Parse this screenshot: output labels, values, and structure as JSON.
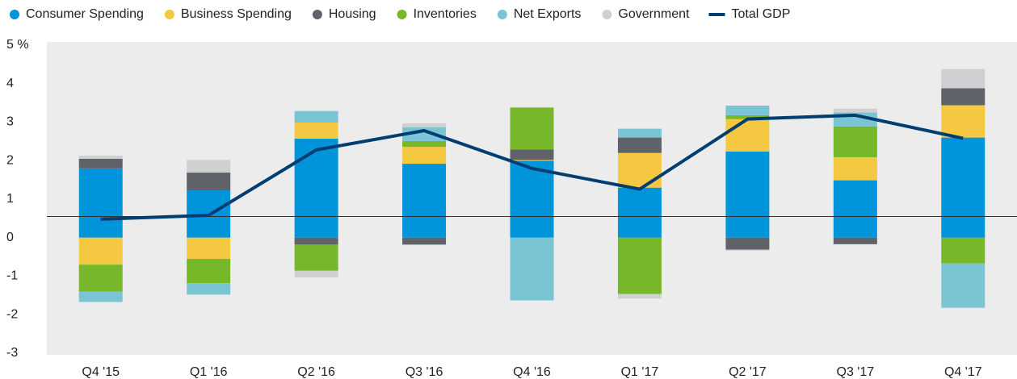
{
  "chart_data": {
    "type": "bar",
    "stacked": true,
    "categories": [
      "Q4 '15",
      "Q1 '16",
      "Q2 '16",
      "Q3 '16",
      "Q4 '16",
      "Q1 '17",
      "Q2 '17",
      "Q3 '17",
      "Q4 '17"
    ],
    "series": [
      {
        "name": "Consumer Spending",
        "color": "#0095da",
        "values": [
          1.8,
          1.23,
          2.57,
          1.92,
          2.0,
          1.3,
          2.24,
          1.49,
          2.6
        ]
      },
      {
        "name": "Business Spending",
        "color": "#f5c842",
        "values": [
          -0.7,
          -0.55,
          0.42,
          0.44,
          0.02,
          0.9,
          0.84,
          0.6,
          0.84
        ]
      },
      {
        "name": "Housing",
        "color": "#5f6369",
        "values": [
          0.25,
          0.46,
          -0.18,
          -0.18,
          0.27,
          0.4,
          -0.31,
          -0.17,
          0.44
        ]
      },
      {
        "name": "Inventories",
        "color": "#76b82a",
        "values": [
          -0.7,
          -0.63,
          -0.68,
          0.15,
          1.09,
          -1.46,
          0.1,
          0.8,
          -0.67
        ]
      },
      {
        "name": "Net Exports",
        "color": "#7ac5d4",
        "values": [
          -0.27,
          -0.3,
          0.3,
          0.36,
          -1.63,
          0.23,
          0.25,
          0.36,
          -1.15
        ]
      },
      {
        "name": "Government",
        "color": "#cfd0d2",
        "values": [
          0.08,
          0.33,
          -0.17,
          0.1,
          0.0,
          -0.12,
          -0.03,
          0.1,
          0.5
        ]
      },
      {
        "name": "Total GDP",
        "color": "#003e72",
        "type": "line",
        "values": [
          0.48,
          0.58,
          2.28,
          2.78,
          1.8,
          1.26,
          3.08,
          3.18,
          2.58
        ]
      }
    ],
    "reference_line": 0.55,
    "ylim": [
      -3,
      5
    ],
    "yticks": [
      -3,
      -2,
      -1,
      0,
      1,
      2,
      3,
      4,
      {
        "value": 5,
        "label": "5 %"
      }
    ],
    "legend": "top"
  }
}
